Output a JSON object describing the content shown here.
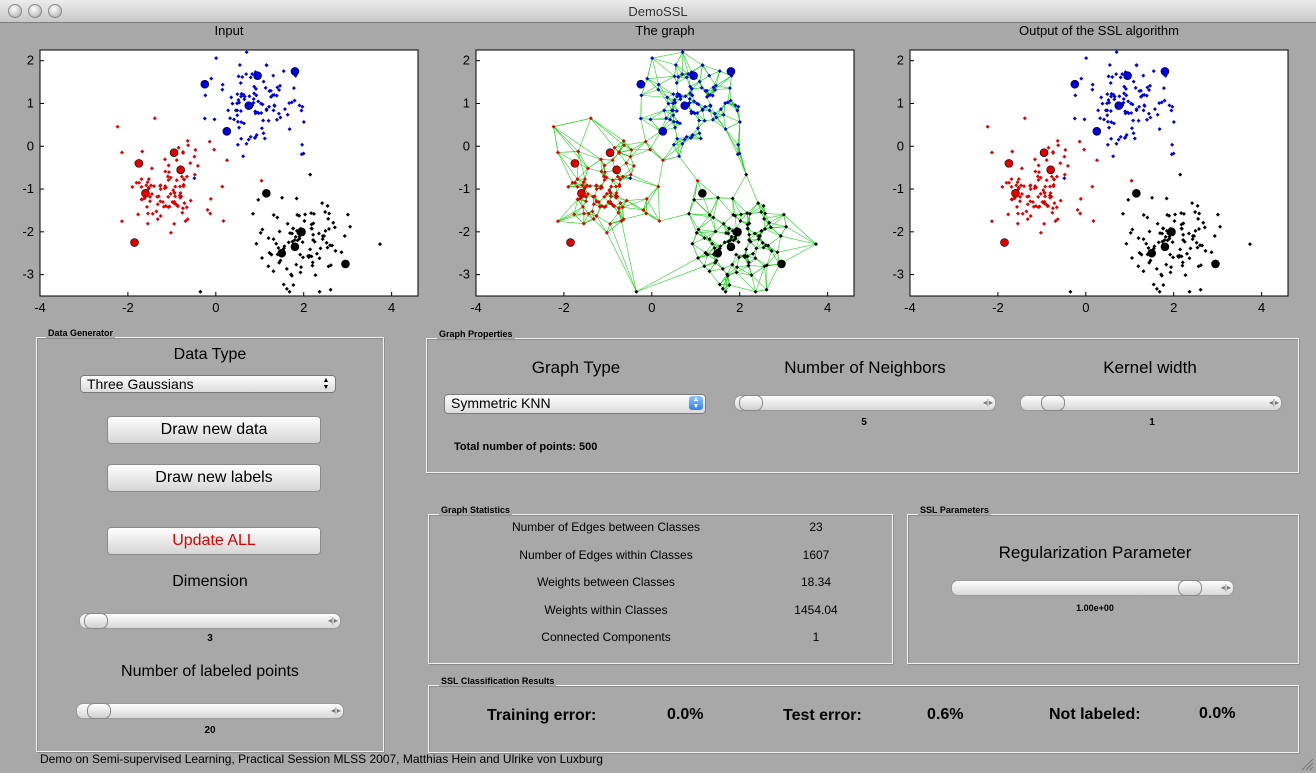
{
  "window": {
    "title": "DemoSSL"
  },
  "plots": [
    {
      "title": "Input",
      "xticks": [
        "-4",
        "-2",
        "0",
        "2",
        "4"
      ],
      "yticks": [
        "2",
        "1",
        "0",
        "-1",
        "-2",
        "-3"
      ]
    },
    {
      "title": "The graph",
      "xticks": [
        "-4",
        "-2",
        "0",
        "2",
        "4"
      ],
      "yticks": [
        "2",
        "1",
        "0",
        "-1",
        "-2",
        "-3"
      ]
    },
    {
      "title": "Output of the SSL algorithm",
      "xticks": [
        "-4",
        "-2",
        "0",
        "2",
        "4"
      ],
      "yticks": [
        "2",
        "1",
        "0",
        "-1",
        "-2",
        "-3"
      ]
    }
  ],
  "colors": {
    "class_red": "#e00000",
    "class_blue": "#0000e0",
    "class_black": "#000000",
    "graph_edges": "#1fd61f",
    "update_all": "#e00000"
  },
  "data_generator": {
    "title": "Data Generator",
    "data_type_label": "Data Type",
    "data_type_value": "Three Gaussians",
    "draw_data_label": "Draw new data",
    "draw_labels_label": "Draw new labels",
    "update_all_label": "Update ALL",
    "dimension_label": "Dimension",
    "dimension_value": "3",
    "labeled_points_label": "Number of labeled points",
    "labeled_points_value": "20"
  },
  "graph_properties": {
    "title": "Graph Properties",
    "graph_type_label": "Graph Type",
    "graph_type_value": "Symmetric KNN",
    "neighbors_label": "Number of Neighbors",
    "neighbors_value": "5",
    "kernel_label": "Kernel width",
    "kernel_value": "1",
    "total_points": "Total number of points: 500"
  },
  "graph_statistics": {
    "title": "Graph Statistics",
    "rows": [
      {
        "label": "Number of Edges between Classes",
        "value": "23"
      },
      {
        "label": "Number of Edges within Classes",
        "value": "1607"
      },
      {
        "label": "Weights between Classes",
        "value": "18.34"
      },
      {
        "label": "Weights within Classes",
        "value": "1454.04"
      },
      {
        "label": "Connected Components",
        "value": "1"
      }
    ]
  },
  "ssl_parameters": {
    "title": "SSL Parameters",
    "reg_label": "Regularization Parameter",
    "reg_value": "1.00e+00"
  },
  "results": {
    "title": "SSL Classification Results",
    "training_label": "Training error:",
    "training_value": "0.0%",
    "test_label": "Test error:",
    "test_value": "0.6%",
    "unlabeled_label": "Not labeled:",
    "unlabeled_value": "0.0%"
  },
  "footer": "Demo on Semi-supervised Learning, Practical Session MLSS 2007, Matthias Hein and Ulrike von Luxburg"
}
